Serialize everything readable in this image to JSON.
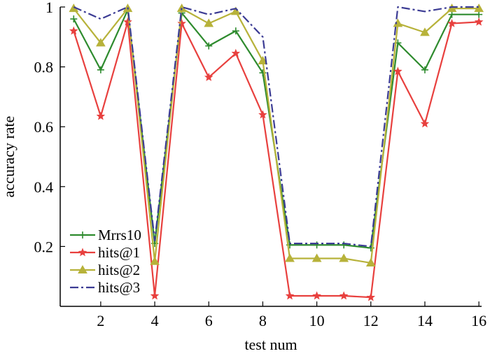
{
  "chart_data": {
    "type": "line",
    "title": "",
    "xlabel": "test num",
    "ylabel": "accuracy rate",
    "xlim": [
      0.5,
      16.1
    ],
    "ylim": [
      0.0,
      1.0
    ],
    "x": [
      1,
      2,
      3,
      4,
      5,
      6,
      7,
      8,
      9,
      10,
      11,
      12,
      13,
      14,
      15,
      16
    ],
    "xticks": [
      2,
      4,
      6,
      8,
      10,
      12,
      14,
      16
    ],
    "yticks": [
      0.2,
      0.4,
      0.6,
      0.8,
      1
    ],
    "ytick_labels": [
      "0.2",
      "0.4",
      "0.6",
      "0.8",
      "1"
    ],
    "grid": false,
    "legend": {
      "position": "bottom-left"
    },
    "series": [
      {
        "name": "Mrrs10",
        "color": "#2e8b2e",
        "marker": "plus",
        "dash": "solid",
        "values": [
          0.96,
          0.79,
          0.99,
          0.21,
          0.98,
          0.87,
          0.92,
          0.78,
          0.205,
          0.205,
          0.205,
          0.195,
          0.88,
          0.79,
          0.975,
          0.975
        ]
      },
      {
        "name": "hits@1",
        "color": "#e8403e",
        "marker": "star",
        "dash": "solid",
        "values": [
          0.92,
          0.635,
          0.95,
          0.035,
          0.945,
          0.765,
          0.845,
          0.64,
          0.035,
          0.035,
          0.035,
          0.03,
          0.785,
          0.61,
          0.945,
          0.95
        ]
      },
      {
        "name": "hits@2",
        "color": "#b7b23a",
        "marker": "triangle",
        "dash": "solid",
        "values": [
          0.995,
          0.88,
          0.995,
          0.15,
          0.995,
          0.945,
          0.985,
          0.82,
          0.16,
          0.16,
          0.16,
          0.145,
          0.945,
          0.915,
          0.995,
          0.995
        ]
      },
      {
        "name": "hits@3",
        "color": "#3c3c94",
        "marker": "none",
        "dash": "dashdot",
        "values": [
          1.0,
          0.96,
          1.0,
          0.22,
          1.0,
          0.975,
          0.995,
          0.9,
          0.21,
          0.21,
          0.21,
          0.2,
          1.0,
          0.985,
          1.0,
          1.0
        ]
      }
    ]
  }
}
